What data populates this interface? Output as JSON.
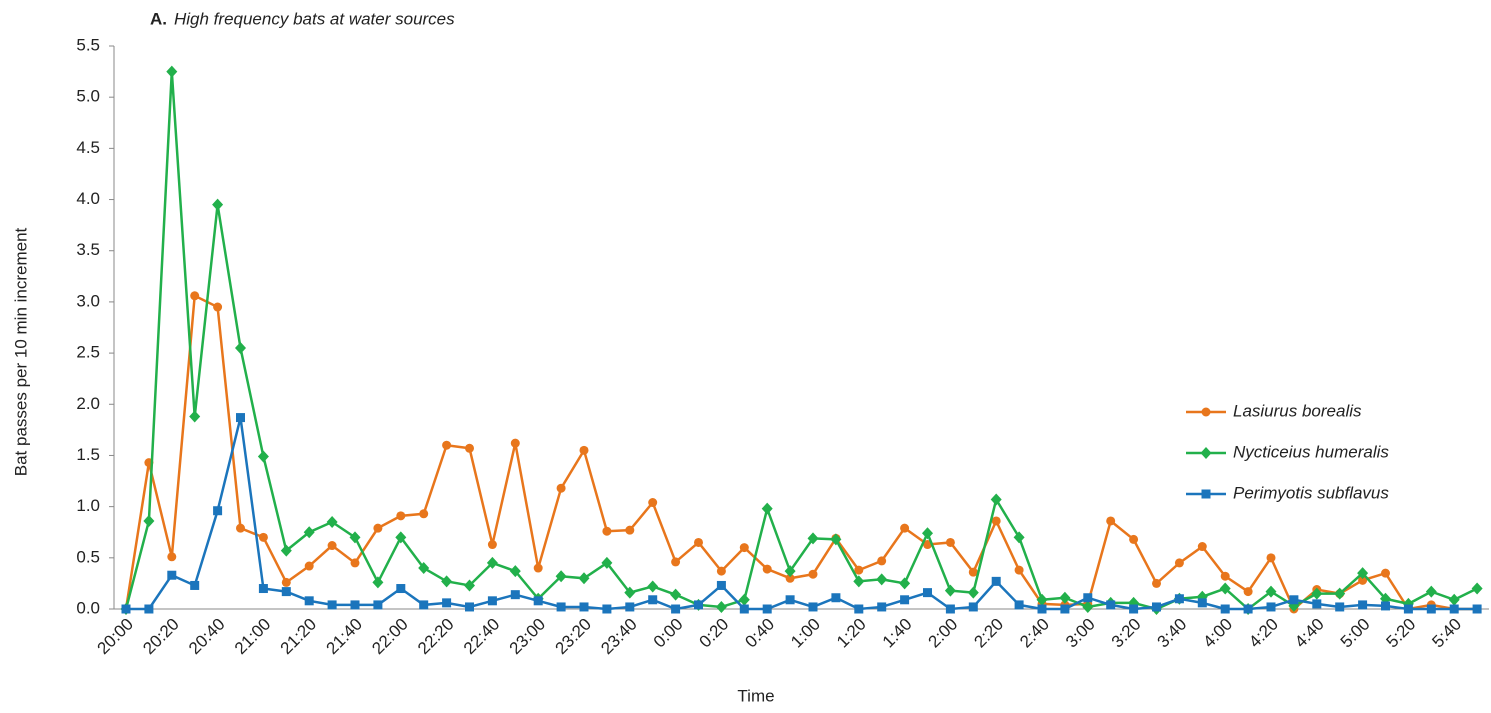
{
  "chart_data": {
    "type": "line",
    "panel_label": "A.",
    "title": "High frequency bats at water sources",
    "x_label": "Time",
    "y_label": "Bat passes per 10 min increment",
    "categories": [
      "20:00",
      null,
      "20:20",
      null,
      "20:40",
      null,
      "21:00",
      null,
      "21:20",
      null,
      "21:40",
      null,
      "22:00",
      null,
      "22:20",
      null,
      "22:40",
      null,
      "23:00",
      null,
      "23:20",
      null,
      "23:40",
      null,
      "0:00",
      null,
      "0:20",
      null,
      "0:40",
      null,
      "1:00",
      null,
      "1:20",
      null,
      "1:40",
      null,
      "2:00",
      null,
      "2:20",
      null,
      "2:40",
      null,
      "3:00",
      null,
      "3:20",
      null,
      "3:40",
      null,
      "4:00",
      null,
      "4:20",
      null,
      "4:40",
      null,
      "5:00",
      null,
      "5:20",
      null,
      "5:40",
      null
    ],
    "series": [
      {
        "name": "Lasiurus borealis",
        "color": "#e8761c",
        "marker": "circle",
        "values": [
          0,
          1.43,
          0.51,
          3.06,
          2.95,
          0.79,
          0.7,
          0.26,
          0.42,
          0.62,
          0.45,
          0.79,
          0.91,
          0.93,
          1.6,
          1.57,
          0.63,
          1.62,
          0.4,
          1.18,
          1.55,
          0.76,
          0.77,
          1.04,
          0.46,
          0.65,
          0.37,
          0.6,
          0.39,
          0.3,
          0.34,
          0.69,
          0.38,
          0.47,
          0.79,
          0.63,
          0.65,
          0.36,
          0.86,
          0.38,
          0.05,
          0.04,
          0.05,
          0.86,
          0.68,
          0.25,
          0.45,
          0.61,
          0.32,
          0.17,
          0.5,
          0,
          0.19,
          0.15,
          0.28,
          0.35,
          0,
          0.04,
          0,
          0
        ]
      },
      {
        "name": "Nycticeius humeralis",
        "color": "#22b04b",
        "marker": "diamond",
        "values": [
          0,
          0.86,
          5.25,
          1.88,
          3.95,
          2.55,
          1.49,
          0.57,
          0.75,
          0.85,
          0.7,
          0.26,
          0.7,
          0.4,
          0.27,
          0.23,
          0.45,
          0.37,
          0.1,
          0.32,
          0.3,
          0.45,
          0.16,
          0.22,
          0.14,
          0.04,
          0.02,
          0.09,
          0.98,
          0.37,
          0.69,
          0.68,
          0.27,
          0.29,
          0.25,
          0.74,
          0.18,
          0.16,
          1.07,
          0.7,
          0.09,
          0.11,
          0.02,
          0.06,
          0.06,
          0,
          0.1,
          0.12,
          0.2,
          0,
          0.17,
          0.03,
          0.15,
          0.15,
          0.35,
          0.1,
          0.05,
          0.17,
          0.09,
          0.2
        ]
      },
      {
        "name": "Perimyotis subflavus",
        "color": "#1b75bc",
        "marker": "square",
        "values": [
          0,
          0,
          0.33,
          0.23,
          0.96,
          1.87,
          0.2,
          0.17,
          0.08,
          0.04,
          0.04,
          0.04,
          0.2,
          0.04,
          0.06,
          0.02,
          0.08,
          0.14,
          0.08,
          0.02,
          0.02,
          0,
          0.02,
          0.09,
          0,
          0.04,
          0.23,
          0,
          0,
          0.09,
          0.02,
          0.11,
          0,
          0.02,
          0.09,
          0.16,
          0,
          0.02,
          0.27,
          0.04,
          0,
          0,
          0.11,
          0.04,
          0,
          0.02,
          0.1,
          0.06,
          0,
          0,
          0.02,
          0.09,
          0.05,
          0.02,
          0.04,
          0.03,
          0,
          0,
          0,
          0
        ]
      }
    ],
    "ylim": [
      0,
      5.5
    ],
    "yticks": [
      {
        "value": 0,
        "label": "0.0"
      },
      0.5,
      {
        "value": 1,
        "label": "1.0"
      },
      1.5,
      {
        "value": 2,
        "label": "2.0"
      },
      2.5,
      {
        "value": 3,
        "label": "3.0"
      },
      3.5,
      {
        "value": 4,
        "label": "4.0"
      },
      4.5,
      {
        "value": 5,
        "label": "5.0"
      },
      5.5
    ],
    "grid": false,
    "legend": "right"
  }
}
